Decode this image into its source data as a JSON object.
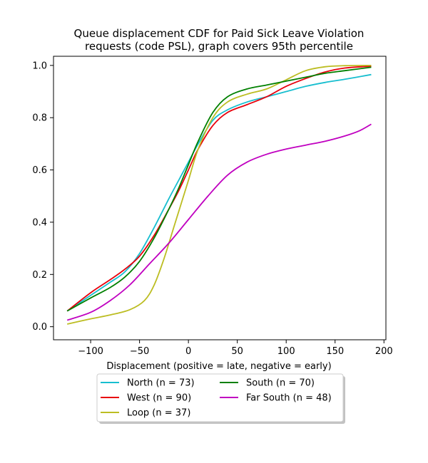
{
  "chart_data": {
    "type": "line",
    "title": "Queue displacement CDF for Paid Sick Leave Violation requests (code PSL), graph covers 95th percentile",
    "title_lines": [
      "Queue displacement CDF for Paid Sick Leave Violation",
      "requests (code PSL), graph covers 95th percentile"
    ],
    "xlabel": "Displacement (positive = late, negative = early)",
    "ylabel": "",
    "xlim": [
      -138,
      202
    ],
    "ylim": [
      -0.05,
      1.035
    ],
    "xticks": [
      -100,
      -50,
      0,
      50,
      100,
      150,
      200
    ],
    "xtick_labels": [
      "−100",
      "−50",
      "0",
      "50",
      "100",
      "150",
      "200"
    ],
    "yticks": [
      0.0,
      0.2,
      0.4,
      0.6,
      0.8,
      1.0
    ],
    "ytick_labels": [
      "0.0",
      "0.2",
      "0.4",
      "0.6",
      "0.8",
      "1.0"
    ],
    "grid": false,
    "legend_position": "below plot, 2 columns",
    "series": [
      {
        "name": "North (n = 73)",
        "color": "#17becf",
        "x": [
          -124,
          -100,
          -80,
          -65,
          -50,
          -35,
          -20,
          -10,
          0,
          10,
          25,
          40,
          60,
          80,
          100,
          120,
          140,
          160,
          187
        ],
        "y": [
          0.06,
          0.12,
          0.17,
          0.21,
          0.28,
          0.38,
          0.49,
          0.56,
          0.63,
          0.7,
          0.79,
          0.83,
          0.86,
          0.88,
          0.9,
          0.92,
          0.935,
          0.947,
          0.965
        ]
      },
      {
        "name": "West (n = 90)",
        "color": "#e8000b",
        "x": [
          -124,
          -100,
          -80,
          -65,
          -50,
          -35,
          -20,
          -10,
          0,
          10,
          25,
          40,
          60,
          80,
          100,
          120,
          140,
          160,
          187
        ],
        "y": [
          0.06,
          0.13,
          0.18,
          0.22,
          0.27,
          0.35,
          0.45,
          0.52,
          0.6,
          0.68,
          0.77,
          0.82,
          0.85,
          0.88,
          0.92,
          0.95,
          0.975,
          0.99,
          0.997
        ]
      },
      {
        "name": "Loop (n = 37)",
        "color": "#bcbd22",
        "x": [
          -124,
          -100,
          -80,
          -60,
          -45,
          -35,
          -25,
          -15,
          -5,
          0,
          10,
          25,
          40,
          60,
          80,
          100,
          120,
          140,
          160,
          187
        ],
        "y": [
          0.01,
          0.03,
          0.045,
          0.065,
          0.1,
          0.16,
          0.26,
          0.38,
          0.5,
          0.56,
          0.68,
          0.8,
          0.86,
          0.89,
          0.91,
          0.945,
          0.98,
          0.995,
          0.999,
          1.0
        ]
      },
      {
        "name": "South (n = 70)",
        "color": "#008000",
        "x": [
          -124,
          -100,
          -80,
          -65,
          -50,
          -35,
          -20,
          -10,
          0,
          10,
          25,
          40,
          60,
          80,
          100,
          120,
          140,
          160,
          187
        ],
        "y": [
          0.06,
          0.11,
          0.15,
          0.19,
          0.25,
          0.34,
          0.45,
          0.53,
          0.62,
          0.71,
          0.82,
          0.88,
          0.91,
          0.925,
          0.94,
          0.955,
          0.97,
          0.98,
          0.993
        ]
      },
      {
        "name": "Far South (n = 48)",
        "color": "#c000c0",
        "x": [
          -124,
          -100,
          -80,
          -60,
          -40,
          -20,
          0,
          20,
          40,
          60,
          80,
          100,
          120,
          140,
          160,
          175,
          187
        ],
        "y": [
          0.025,
          0.055,
          0.1,
          0.16,
          0.24,
          0.32,
          0.41,
          0.5,
          0.58,
          0.63,
          0.66,
          0.68,
          0.695,
          0.71,
          0.73,
          0.75,
          0.775
        ]
      }
    ]
  },
  "legend_rows": [
    [
      "North (n = 73)",
      "South (n = 70)"
    ],
    [
      "West (n = 90)",
      "Far South (n = 48)"
    ],
    [
      "Loop (n = 37)",
      ""
    ]
  ]
}
